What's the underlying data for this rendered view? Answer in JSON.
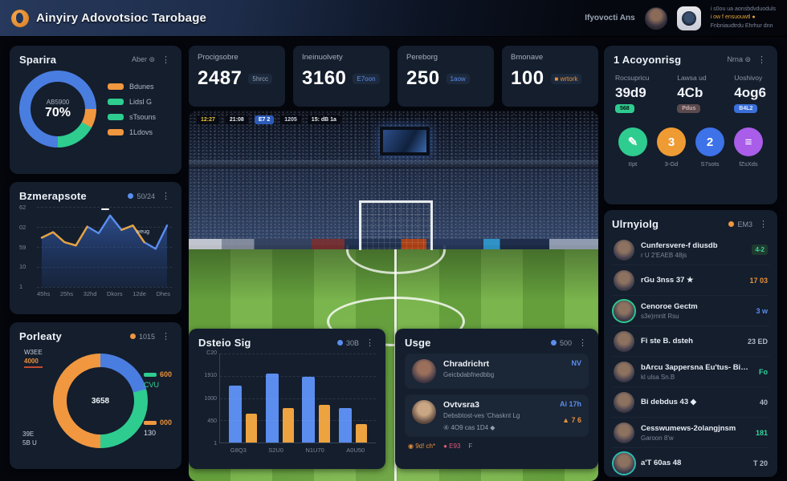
{
  "colors": {
    "accent_blue": "#5b8def",
    "accent_orange": "#eda33f",
    "accent_green": "#2ecc8f",
    "accent_purple": "#a95de8",
    "card_bg": "#141e2d",
    "page_bg": "#04060c"
  },
  "header": {
    "title": "Ainyiry Adovotsioc Tarobage",
    "user_label": "Ifyovocti Ans",
    "right_lines": [
      "i s0ou ua aonsbdvduoduls",
      "i ow f ensuouwtl ●",
      "Fnbniaudtrdu Ehrhur dnn"
    ]
  },
  "stat_cards": [
    {
      "label": "Procigsobre",
      "value": "2487",
      "badge": "5hrcc"
    },
    {
      "label": "Ineinuolvety",
      "value": "3160",
      "badge": "E7oon"
    },
    {
      "label": "Pereborg",
      "value": "250",
      "badge": "1aow"
    },
    {
      "label": "Bmonave",
      "value": "100",
      "badge": "■ wrtork"
    }
  ],
  "spend_donut": {
    "title": "Sparira",
    "menu": "Aber ⊜",
    "center_label": "AB5900",
    "center_value": "70%",
    "segments": [
      {
        "color": "#4a7de0",
        "value": 25
      },
      {
        "color": "#f0973f",
        "value": 8
      },
      {
        "color": "#2ecc8f",
        "value": 17
      },
      {
        "color": "#4a7de0",
        "value": 50
      }
    ],
    "legend": [
      {
        "color": "#f0973f",
        "label": "Bdunes"
      },
      {
        "color": "#2ecc8f",
        "label": "Lidsl G"
      },
      {
        "color": "#2ecc8f",
        "label": "sTsouns"
      },
      {
        "color": "#f0973f",
        "label": "1Ldovs"
      }
    ]
  },
  "line_chart": {
    "type": "line",
    "title": "Bzmerapsote",
    "badge": "50/24",
    "annotation": "weug",
    "ymax": 62,
    "y_ticks": [
      "62",
      "02",
      "59",
      "10",
      "1"
    ],
    "x_ticks": [
      "45hs",
      "25hs",
      "32hd",
      "Dkors",
      "12de",
      "Dhes"
    ],
    "values": [
      40,
      45,
      36,
      33,
      50,
      44,
      60,
      47,
      51,
      36,
      30,
      51
    ],
    "orange_segments": [
      [
        0,
        4
      ],
      [
        7,
        9
      ]
    ]
  },
  "bottom_donut": {
    "type": "donut",
    "title": "Porleaty",
    "badge": "1015",
    "center_value": "3658",
    "segments": [
      {
        "color": "#4a7de0",
        "value": 21
      },
      {
        "color": "#2ecc8f",
        "value": 29
      },
      {
        "color": "#f0973f",
        "value": 50
      }
    ],
    "callout_top": {
      "label": "W3EE",
      "value": "4000"
    },
    "callout_bottom": {
      "label": "39E",
      "value": "5B U"
    },
    "side_legend": [
      {
        "line1": "600",
        "line2": "CVU",
        "pill": "#2ecc8f"
      },
      {
        "line1": "000",
        "line2": "130",
        "pill": "#f0973f"
      }
    ]
  },
  "bar_chart": {
    "type": "bar",
    "title": "Dsteio Sig",
    "badge": "30B",
    "ymax": 200,
    "y_ticks": [
      "C20",
      "1910",
      "1000",
      "450",
      "1"
    ],
    "categories": [
      "G8Q3",
      "S2U0",
      "N1U70",
      "A0U50"
    ],
    "series": [
      {
        "name": "blue",
        "values": [
          128,
          155,
          147,
          77
        ]
      },
      {
        "name": "orange",
        "values": [
          65,
          78,
          84,
          42
        ]
      }
    ]
  },
  "usge": {
    "title": "Usge",
    "badge": "500",
    "rows": [
      {
        "name": "Chradrichrt",
        "sub": "Geicbdabfnedbbg",
        "right1": "NV",
        "right2": "",
        "meta": ""
      },
      {
        "name": "Ovtvsra3",
        "sub": "Debsbtost-ves 'Chasknt Lg",
        "right1": "Ai 17h",
        "right2": "▲ 7 6",
        "meta": "④ 4O9 cas 1D4 ◆"
      }
    ],
    "footer": {
      "a": "◉ 9d! ch*",
      "b": "● E93",
      "c": "F"
    }
  },
  "right_stats": {
    "title": "1 Acoyonrisg",
    "menu": "Nrna ⊜",
    "stats": [
      {
        "label": "Rocsupricu",
        "value": "39d9",
        "pill": "568"
      },
      {
        "label": "Lawsa ud",
        "value": "4Cb",
        "pill": "Pdus"
      },
      {
        "label": "Uoshivoy",
        "value": "4og6",
        "pill": "B4L2"
      }
    ],
    "actions": [
      {
        "glyph": "✎",
        "label": "tIpt"
      },
      {
        "glyph": "3",
        "label": "3-Gd"
      },
      {
        "glyph": "2",
        "label": "S7sots"
      },
      {
        "glyph": "≡",
        "label": "fZsXds"
      }
    ]
  },
  "right_list": {
    "title": "Ulrnyiolg",
    "badge": "EM3",
    "rows": [
      {
        "name": "Cunfersvere-f diusdb",
        "sub": "r U 2'EAEB 48js",
        "right": "4-2"
      },
      {
        "name": "rGu 3nss 37 ★",
        "sub": "",
        "right": "17 03"
      },
      {
        "name": "Cenoroe Gectm",
        "sub": "s3e)rnnlt Rsu",
        "right": "3 w"
      },
      {
        "name": "Fi ste B. dsteh",
        "sub": "",
        "right": "23 ED"
      },
      {
        "name": "bArcu 3appersna Eu'tus- Binuzut",
        "sub": "kl ulsa Sn.B",
        "right": "Fo"
      },
      {
        "name": "Bi debdus 43 ◆",
        "sub": "",
        "right": "40"
      },
      {
        "name": "Cesswumews-2olangjnsm",
        "sub": "Garoon 8'w",
        "right": "181"
      },
      {
        "name": "a'T 60as 48",
        "sub": "",
        "right": "T 20"
      }
    ]
  },
  "stadium": {
    "scoreboard": [
      "12:27",
      "21:08",
      "E7 2",
      "1205",
      "15: dB 1a"
    ]
  }
}
